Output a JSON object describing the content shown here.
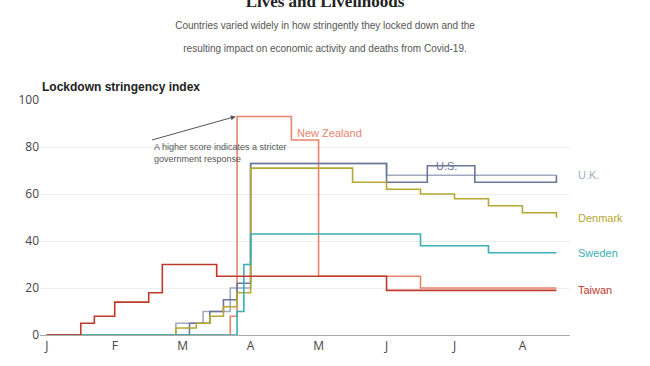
{
  "chart_data": {
    "type": "line",
    "line_style": "step",
    "title": "Lives and Livelihoods",
    "subtitle": "Countries varied widely in how stringently they locked down and the\nresulting impact on economic activity and deaths from Covid-19.",
    "chart_title": "Lockdown stringency index",
    "xlim": [
      -0.1,
      7.7
    ],
    "xticks": [
      {
        "value": 0,
        "label": "J"
      },
      {
        "value": 1,
        "label": "F"
      },
      {
        "value": 2,
        "label": "M"
      },
      {
        "value": 3,
        "label": "A"
      },
      {
        "value": 4,
        "label": "M"
      },
      {
        "value": 5,
        "label": "J"
      },
      {
        "value": 6,
        "label": "J"
      },
      {
        "value": 7,
        "label": "A"
      }
    ],
    "ylim": [
      0,
      100
    ],
    "yticks": [
      0,
      20,
      40,
      60,
      80,
      100
    ],
    "grid": "y",
    "series": [
      {
        "name": "New Zealand",
        "color": "#e8836e",
        "x": [
          0,
          2.6,
          2.7,
          2.8,
          3.1,
          3.6,
          4.0,
          4.5,
          5.0,
          5.5,
          6.0,
          6.5,
          7.0,
          7.5
        ],
        "values": [
          0,
          0,
          8,
          93,
          93,
          83,
          25,
          25,
          25,
          20,
          20,
          20,
          20,
          20
        ]
      },
      {
        "name": "U.K.",
        "color": "#a0aabf",
        "x": [
          0,
          1.8,
          1.9,
          2.0,
          2.3,
          2.5,
          2.7,
          3.0,
          3.5,
          4.0,
          4.5,
          5.0,
          5.5,
          6.0,
          6.5,
          7.0,
          7.5
        ],
        "values": [
          0,
          0,
          5,
          5,
          10,
          10,
          20,
          73,
          73,
          73,
          73,
          68,
          68,
          68,
          68,
          68,
          68
        ]
      },
      {
        "name": "U.S.",
        "color": "#6b7598",
        "x": [
          0,
          2.0,
          2.1,
          2.4,
          2.6,
          2.8,
          3.0,
          3.5,
          4.0,
          4.5,
          5.0,
          5.3,
          5.6,
          6.0,
          6.3,
          6.5,
          7.0,
          7.5
        ],
        "values": [
          0,
          0,
          5,
          10,
          15,
          22,
          73,
          73,
          73,
          73,
          65,
          65,
          72,
          72,
          65,
          65,
          65,
          68
        ]
      },
      {
        "name": "Denmark",
        "color": "#b5a832",
        "x": [
          0,
          1.8,
          1.9,
          2.0,
          2.2,
          2.4,
          2.6,
          2.8,
          3.0,
          3.5,
          4.0,
          4.5,
          5.0,
          5.5,
          6.0,
          6.5,
          7.0,
          7.5
        ],
        "values": [
          0,
          0,
          3,
          3,
          5,
          8,
          12,
          18,
          71,
          71,
          71,
          65,
          62,
          60,
          58,
          55,
          52,
          50
        ]
      },
      {
        "name": "Sweden",
        "color": "#38b0b5",
        "x": [
          0,
          2.7,
          2.8,
          2.9,
          3.0,
          3.5,
          4.0,
          4.5,
          5.0,
          5.5,
          6.0,
          6.5,
          7.0,
          7.5
        ],
        "values": [
          0,
          0,
          10,
          30,
          43,
          43,
          43,
          43,
          43,
          38,
          38,
          35,
          35,
          35
        ]
      },
      {
        "name": "Taiwan",
        "color": "#c0392b",
        "x": [
          0,
          0.5,
          0.7,
          1.0,
          1.5,
          1.7,
          2.0,
          2.3,
          2.5,
          2.7,
          3.0,
          3.5,
          4.0,
          4.5,
          5.0,
          5.5,
          6.0,
          6.5,
          7.0,
          7.5
        ],
        "values": [
          0,
          5,
          8,
          14,
          18,
          30,
          30,
          30,
          25,
          25,
          25,
          25,
          25,
          25,
          19,
          19,
          19,
          19,
          19,
          19
        ]
      }
    ],
    "end_labels": [
      {
        "text": "U.K.",
        "y": 68,
        "color": "#a0aabf"
      },
      {
        "text": "Denmark",
        "y": 50,
        "color": "#b5a832"
      },
      {
        "text": "Sweden",
        "y": 35,
        "color": "#38b0b5"
      },
      {
        "text": "Taiwan",
        "y": 19,
        "color": "#c0392b"
      }
    ],
    "inline_labels": [
      {
        "text": "New Zealand",
        "x": 3.65,
        "y": 86,
        "color": "#e8836e"
      },
      {
        "text": "U.S.",
        "x": 5.7,
        "y": 72,
        "color": "#6b7598"
      }
    ],
    "annotation": {
      "text": "A higher score indicates a stricter\ngovernment response",
      "x": 2.78,
      "y": 93,
      "text_x": 1.55,
      "text_y": 83
    }
  }
}
